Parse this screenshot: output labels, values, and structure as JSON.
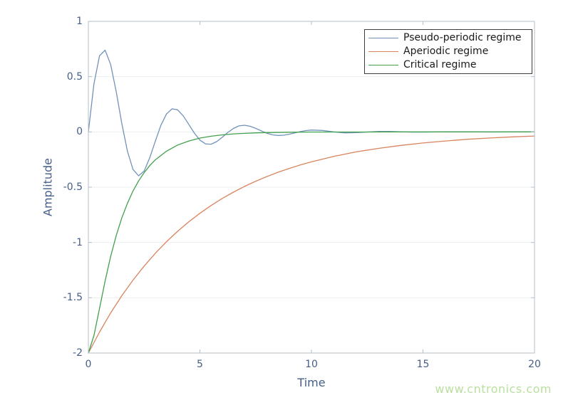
{
  "figure": {
    "axis": {
      "frame_color": "#b6bfca",
      "grid_color": "#ebeef1",
      "tick_color": "#b6bfca",
      "tick_label_color": "#465f87",
      "axis_label_color": "#465f87"
    },
    "legend": {
      "border_color": "#3d3d3d",
      "text_color": "#1a1a1a",
      "background": "#ffffff"
    },
    "watermark": {
      "text": "www.cntronics.com",
      "color": "#bae0a0"
    }
  },
  "chart_data": {
    "type": "line",
    "title": "",
    "xlabel": "Time",
    "ylabel": "Amplitude",
    "xlim": [
      0,
      20
    ],
    "ylim": [
      -2,
      1
    ],
    "x_ticks": [
      0,
      5,
      10,
      15,
      20
    ],
    "y_ticks": [
      1,
      0.5,
      0,
      -0.5,
      -1,
      -1.5,
      -2
    ],
    "grid": "horizontal-only",
    "legend_position": "top-right",
    "series": [
      {
        "name": "Pseudo-periodic regime",
        "color": "#7292ba",
        "points": [
          [
            0,
            0
          ],
          [
            0.25,
            0.434
          ],
          [
            0.5,
            0.689
          ],
          [
            0.75,
            0.739
          ],
          [
            1,
            0.609
          ],
          [
            1.25,
            0.363
          ],
          [
            1.5,
            0.077
          ],
          [
            1.75,
            -0.174
          ],
          [
            2,
            -0.34
          ],
          [
            2.25,
            -0.397
          ],
          [
            2.5,
            -0.353
          ],
          [
            2.75,
            -0.235
          ],
          [
            3,
            -0.084
          ],
          [
            3.25,
            0.059
          ],
          [
            3.5,
            0.162
          ],
          [
            3.75,
            0.209
          ],
          [
            4,
            0.2
          ],
          [
            4.25,
            0.146
          ],
          [
            4.5,
            0.068
          ],
          [
            4.75,
            -0.011
          ],
          [
            5,
            -0.074
          ],
          [
            5.25,
            -0.108
          ],
          [
            5.5,
            -0.111
          ],
          [
            5.75,
            -0.088
          ],
          [
            6,
            -0.049
          ],
          [
            6.25,
            -0.005
          ],
          [
            6.5,
            0.031
          ],
          [
            6.75,
            0.054
          ],
          [
            7,
            0.06
          ],
          [
            7.25,
            0.051
          ],
          [
            7.5,
            0.032
          ],
          [
            7.75,
            0.01
          ],
          [
            8,
            -0.012
          ],
          [
            8.25,
            -0.026
          ],
          [
            8.5,
            -0.032
          ],
          [
            8.75,
            -0.03
          ],
          [
            9,
            -0.021
          ],
          [
            9.25,
            -0.009
          ],
          [
            9.5,
            0.003
          ],
          [
            9.75,
            0.012
          ],
          [
            10,
            0.017
          ],
          [
            10.5,
            0.013
          ],
          [
            11,
            0
          ],
          [
            11.5,
            -0.009
          ],
          [
            12,
            -0.007
          ],
          [
            12.5,
            -0.001
          ],
          [
            13,
            0.004
          ],
          [
            13.5,
            0.004
          ],
          [
            14,
            0.001
          ],
          [
            14.5,
            -0.002
          ],
          [
            15,
            -0.002
          ],
          [
            16,
            0.001
          ],
          [
            17,
            0.001
          ],
          [
            18,
            -0.001
          ],
          [
            19,
            0
          ],
          [
            20,
            0
          ]
        ]
      },
      {
        "name": "Aperiodic regime",
        "color": "#d8845e",
        "points": [
          [
            0,
            -2
          ],
          [
            0.5,
            -1.81
          ],
          [
            1,
            -1.637
          ],
          [
            1.5,
            -1.482
          ],
          [
            2,
            -1.341
          ],
          [
            2.5,
            -1.213
          ],
          [
            3,
            -1.098
          ],
          [
            3.5,
            -0.993
          ],
          [
            4,
            -0.899
          ],
          [
            4.5,
            -0.813
          ],
          [
            5,
            -0.736
          ],
          [
            5.5,
            -0.666
          ],
          [
            6,
            -0.602
          ],
          [
            6.5,
            -0.545
          ],
          [
            7,
            -0.493
          ],
          [
            7.5,
            -0.446
          ],
          [
            8,
            -0.404
          ],
          [
            8.5,
            -0.365
          ],
          [
            9,
            -0.331
          ],
          [
            9.5,
            -0.299
          ],
          [
            10,
            -0.271
          ],
          [
            11,
            -0.222
          ],
          [
            12,
            -0.181
          ],
          [
            13,
            -0.149
          ],
          [
            14,
            -0.122
          ],
          [
            15,
            -0.1
          ],
          [
            16,
            -0.082
          ],
          [
            17,
            -0.067
          ],
          [
            18,
            -0.055
          ],
          [
            19,
            -0.045
          ],
          [
            20,
            -0.037
          ]
        ]
      },
      {
        "name": "Critical regime",
        "color": "#42a04e",
        "points": [
          [
            0,
            -2
          ],
          [
            0.25,
            -1.842
          ],
          [
            0.5,
            -1.595
          ],
          [
            0.75,
            -1.348
          ],
          [
            1,
            -1.126
          ],
          [
            1.25,
            -0.937
          ],
          [
            1.5,
            -0.778
          ],
          [
            1.75,
            -0.646
          ],
          [
            2,
            -0.535
          ],
          [
            2.25,
            -0.444
          ],
          [
            2.5,
            -0.368
          ],
          [
            2.75,
            -0.305
          ],
          [
            3,
            -0.253
          ],
          [
            3.5,
            -0.174
          ],
          [
            4,
            -0.119
          ],
          [
            4.5,
            -0.082
          ],
          [
            5,
            -0.056
          ],
          [
            5.5,
            -0.039
          ],
          [
            6,
            -0.027
          ],
          [
            6.5,
            -0.018
          ],
          [
            7,
            -0.013
          ],
          [
            7.5,
            -0.009
          ],
          [
            8,
            -0.006
          ],
          [
            9,
            -0.003
          ],
          [
            10,
            -0.001
          ],
          [
            12,
            -0.001
          ],
          [
            14,
            0
          ],
          [
            16,
            0
          ],
          [
            18,
            0
          ],
          [
            20,
            0
          ]
        ]
      }
    ]
  }
}
